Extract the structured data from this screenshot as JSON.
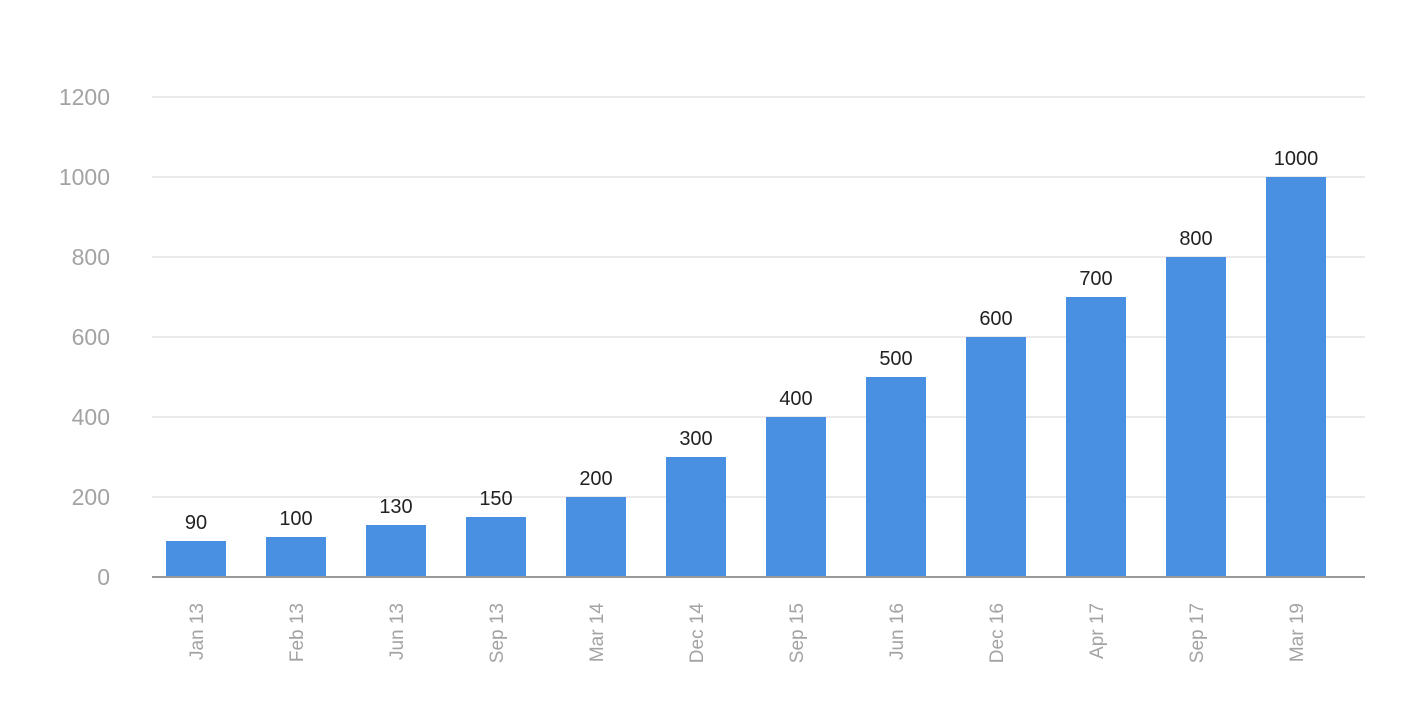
{
  "chart_data": {
    "type": "bar",
    "categories": [
      "Jan 13",
      "Feb 13",
      "Jun 13",
      "Sep 13",
      "Mar 14",
      "Dec 14",
      "Sep 15",
      "Jun 16",
      "Dec 16",
      "Apr 17",
      "Sep 17",
      "Mar 19"
    ],
    "values": [
      90,
      100,
      130,
      150,
      200,
      300,
      400,
      500,
      600,
      700,
      800,
      1000
    ],
    "data_labels": [
      "90",
      "100",
      "130",
      "150",
      "200",
      "300",
      "400",
      "500",
      "600",
      "700",
      "800",
      "1000"
    ],
    "y_ticks": [
      "0",
      "200",
      "400",
      "600",
      "800",
      "1000",
      "1200"
    ],
    "ylim": [
      0,
      1200
    ],
    "grid": true,
    "legend": "none",
    "bar_color": "#4a90e2",
    "grid_color": "#e3e3e3",
    "axis_color": "#999999",
    "tick_label_color": "#a3a3a3",
    "data_label_color": "#222222"
  }
}
